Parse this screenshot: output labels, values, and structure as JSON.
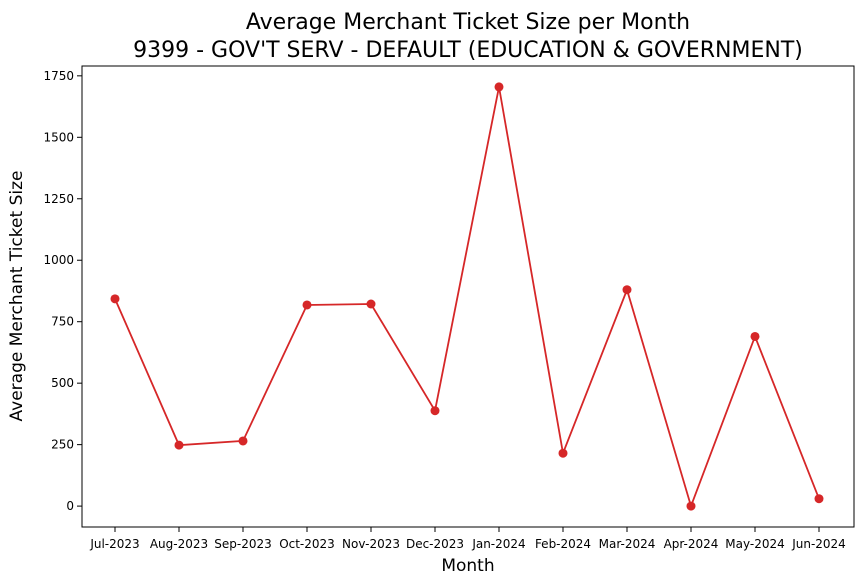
{
  "chart_data": {
    "type": "line",
    "title": "Average Merchant Ticket Size per Month",
    "subtitle": "9399 - GOV'T SERV - DEFAULT (EDUCATION & GOVERNMENT)",
    "xlabel": "Month",
    "ylabel": "Average Merchant Ticket Size",
    "categories": [
      "Jul-2023",
      "Aug-2023",
      "Sep-2023",
      "Oct-2023",
      "Nov-2023",
      "Dec-2023",
      "Jan-2024",
      "Feb-2024",
      "Mar-2024",
      "Apr-2024",
      "May-2024",
      "Jun-2024"
    ],
    "series": [
      {
        "values": [
          843,
          248,
          265,
          818,
          822,
          388,
          1705,
          215,
          880,
          0,
          690,
          30
        ],
        "color": "#d62728"
      }
    ],
    "yticks": [
      0,
      250,
      500,
      750,
      1000,
      1250,
      1500,
      1750
    ],
    "ylim": [
      -85,
      1790
    ],
    "grid": false,
    "legend": "none"
  }
}
